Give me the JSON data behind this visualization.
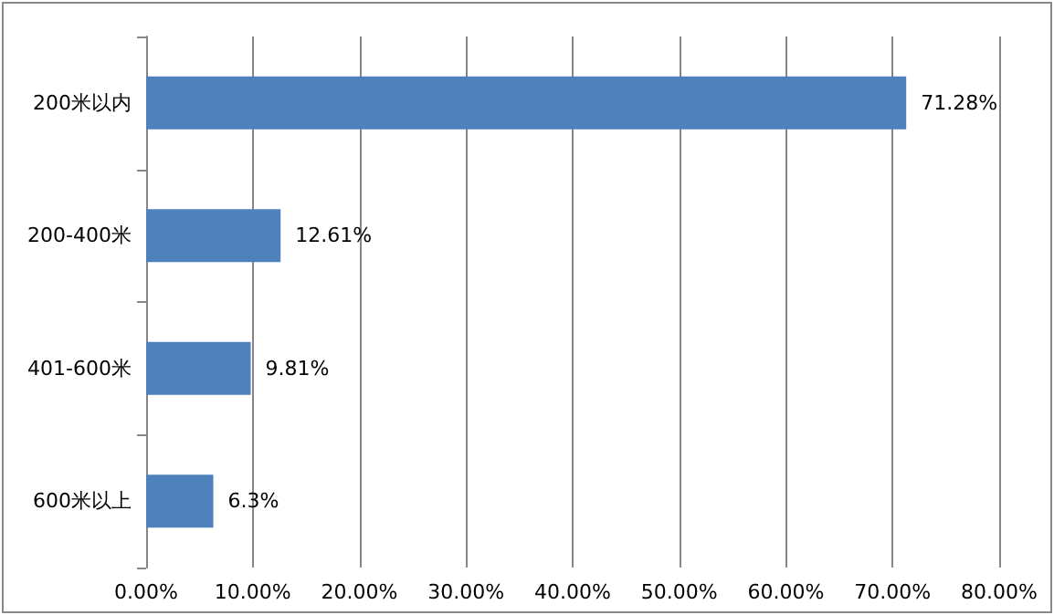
{
  "chart_data": {
    "type": "bar",
    "orientation": "horizontal",
    "categories": [
      "200米以内",
      "200-400米",
      "401-600米",
      "600米以上"
    ],
    "values": [
      71.28,
      12.61,
      9.81,
      6.3
    ],
    "value_labels": [
      "71.28%",
      "12.61%",
      "9.81%",
      "6.3%"
    ],
    "color": "#4f81bd",
    "xlim": [
      0,
      80
    ],
    "xticks": [
      {
        "value": 0,
        "label": "0.00%"
      },
      {
        "value": 10,
        "label": "10.00%"
      },
      {
        "value": 20,
        "label": "20.00%"
      },
      {
        "value": 30,
        "label": "30.00%"
      },
      {
        "value": 40,
        "label": "40.00%"
      },
      {
        "value": 50,
        "label": "50.00%"
      },
      {
        "value": 60,
        "label": "60.00%"
      },
      {
        "value": 70,
        "label": "70.00%"
      },
      {
        "value": 80,
        "label": "80.00%"
      }
    ],
    "grid": "x"
  }
}
